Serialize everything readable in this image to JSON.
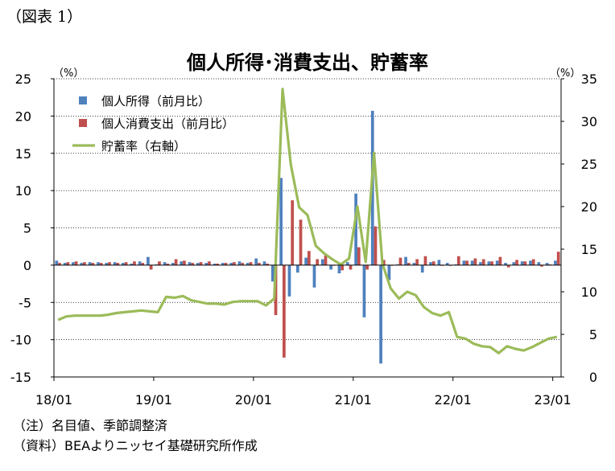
{
  "figure_label": "（図表 1）",
  "title": "個人所得･消費支出、貯蓄率",
  "left_unit": "（%）",
  "right_unit": "（%）",
  "notes": [
    "（注）名目値、季節調整済",
    "（資料）BEAよりニッセイ基礎研究所作成"
  ],
  "colors": {
    "income": "#4f81bd",
    "consumption": "#c0504d",
    "saving": "#9bbb59",
    "grid": "#000000"
  },
  "chart_data": {
    "type": "bar+line",
    "title": "個人所得･消費支出、貯蓄率",
    "x_tick_labels": [
      "18/01",
      "19/01",
      "20/01",
      "21/01",
      "22/01",
      "23/01"
    ],
    "x": [
      "18/01",
      "18/02",
      "18/03",
      "18/04",
      "18/05",
      "18/06",
      "18/07",
      "18/08",
      "18/09",
      "18/10",
      "18/11",
      "18/12",
      "19/01",
      "19/02",
      "19/03",
      "19/04",
      "19/05",
      "19/06",
      "19/07",
      "19/08",
      "19/09",
      "19/10",
      "19/11",
      "19/12",
      "20/01",
      "20/02",
      "20/03",
      "20/04",
      "20/05",
      "20/06",
      "20/07",
      "20/08",
      "20/09",
      "20/10",
      "20/11",
      "20/12",
      "21/01",
      "21/02",
      "21/03",
      "21/04",
      "21/05",
      "21/06",
      "21/07",
      "21/08",
      "21/09",
      "21/10",
      "21/11",
      "21/12",
      "22/01",
      "22/02",
      "22/03",
      "22/04",
      "22/05",
      "22/06",
      "22/07",
      "22/08",
      "22/09",
      "22/10",
      "22/11",
      "22/12",
      "23/01"
    ],
    "left_axis": {
      "ylim": [
        -15,
        25
      ],
      "ticks": [
        -15,
        -10,
        -5,
        0,
        5,
        10,
        15,
        20,
        25
      ]
    },
    "right_axis": {
      "ylim": [
        0,
        35
      ],
      "ticks": [
        0,
        5,
        10,
        15,
        20,
        25,
        30,
        35
      ]
    },
    "grid": true,
    "legend_position": "top-left",
    "series": [
      {
        "name": "個人所得（前月比）",
        "type": "bar",
        "axis": "left",
        "color": "#4f81bd",
        "values": [
          0.6,
          0.3,
          0.4,
          0.3,
          0.4,
          0.4,
          0.3,
          0.4,
          0.3,
          0.2,
          0.5,
          1.1,
          0.1,
          0.4,
          0.3,
          0.5,
          0.4,
          0.3,
          0.3,
          0.2,
          0.3,
          0.3,
          0.5,
          0.3,
          0.9,
          0.5,
          -2.2,
          11.7,
          -4.2,
          -1.0,
          1.0,
          -3.0,
          0.8,
          -0.6,
          -1.1,
          0.4,
          9.6,
          -7.0,
          20.7,
          -13.2,
          -2.0,
          0.1,
          1.1,
          0.3,
          -1.0,
          0.4,
          0.7,
          0.3,
          0.1,
          0.6,
          0.6,
          0.4,
          0.5,
          0.6,
          0.3,
          0.4,
          0.5,
          0.6,
          0.4,
          0.3,
          0.6
        ]
      },
      {
        "name": "個人消費支出（前月比）",
        "type": "bar",
        "axis": "left",
        "color": "#c0504d",
        "values": [
          0.3,
          0.4,
          0.5,
          0.4,
          0.3,
          0.3,
          0.4,
          0.3,
          0.4,
          0.5,
          0.3,
          -0.6,
          0.5,
          0.2,
          0.8,
          0.6,
          0.3,
          0.4,
          0.5,
          0.2,
          0.3,
          0.4,
          0.3,
          0.4,
          0.3,
          0.2,
          -6.7,
          -12.4,
          8.7,
          6.1,
          1.9,
          0.8,
          1.3,
          0.0,
          -0.7,
          -0.6,
          2.4,
          -0.6,
          5.2,
          0.7,
          0.0,
          1.0,
          0.3,
          0.8,
          1.2,
          0.5,
          -0.1,
          -0.1,
          1.2,
          0.6,
          0.9,
          0.8,
          0.5,
          1.1,
          -0.3,
          0.7,
          0.5,
          0.8,
          -0.2,
          0.1,
          1.8
        ]
      },
      {
        "name": "貯蓄率（右軸）",
        "type": "line",
        "axis": "right",
        "color": "#9bbb59",
        "values": [
          6.7,
          7.1,
          7.2,
          7.2,
          7.2,
          7.2,
          7.3,
          7.5,
          7.6,
          7.7,
          7.8,
          7.7,
          7.6,
          9.4,
          9.3,
          9.5,
          9.0,
          8.8,
          8.6,
          8.6,
          8.5,
          8.8,
          8.9,
          8.9,
          8.9,
          8.4,
          9.2,
          33.8,
          24.9,
          19.9,
          19.0,
          15.4,
          14.5,
          13.8,
          13.2,
          13.9,
          20.0,
          13.5,
          26.3,
          13.3,
          10.4,
          9.2,
          10.0,
          9.6,
          8.2,
          7.5,
          7.2,
          7.6,
          4.7,
          4.5,
          3.9,
          3.6,
          3.5,
          2.8,
          3.6,
          3.3,
          3.1,
          3.5,
          4.0,
          4.5,
          4.7
        ]
      }
    ]
  }
}
